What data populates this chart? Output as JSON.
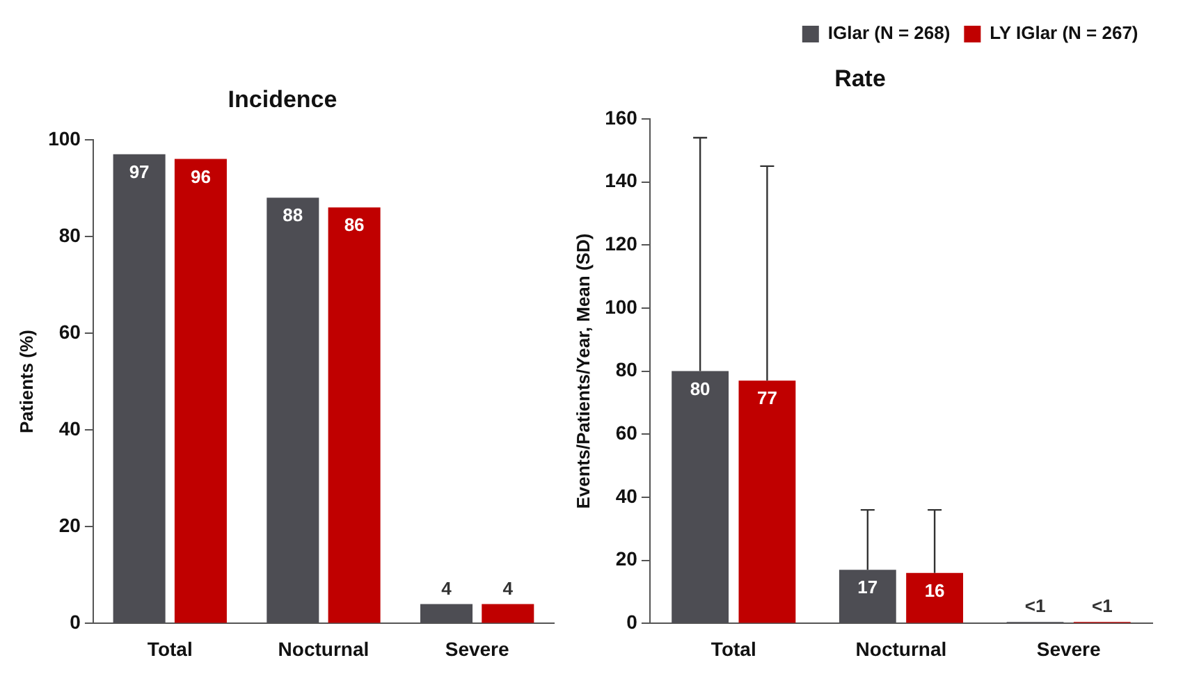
{
  "chart_data": [
    {
      "type": "bar",
      "title": "Incidence",
      "ylabel": "Patients (%)",
      "categories": [
        "Total",
        "Nocturnal",
        "Severe"
      ],
      "ylim": [
        0,
        100
      ],
      "yticks": [
        0,
        20,
        40,
        60,
        80,
        100
      ],
      "grid": false,
      "legend": false,
      "data_labels": true,
      "series": [
        {
          "color": "#4d4d53",
          "values": [
            97,
            88,
            4
          ]
        },
        {
          "color": "#c00000",
          "values": [
            96,
            86,
            4
          ]
        }
      ]
    },
    {
      "type": "bar",
      "title": "Rate",
      "ylabel": "Events/Patients/Year, Mean (SD)",
      "categories": [
        "Total",
        "Nocturnal",
        "Severe"
      ],
      "ylim": [
        0,
        160
      ],
      "yticks": [
        0,
        20,
        40,
        60,
        80,
        100,
        120,
        140,
        160
      ],
      "grid": false,
      "legend": "top right",
      "series": [
        {
          "name": "IGlar (N = 268)",
          "color": "#4d4d53",
          "values": [
            80,
            17,
            0.5
          ],
          "value_labels": [
            "80",
            "17",
            "<1"
          ],
          "errors": [
            [
              80,
              154
            ],
            [
              17,
              36
            ],
            null
          ]
        },
        {
          "name": "LY IGlar (N = 267)",
          "color": "#c00000",
          "values": [
            77,
            16,
            0.5
          ],
          "value_labels": [
            "77",
            "16",
            "<1"
          ],
          "errors": [
            [
              77,
              145
            ],
            [
              16,
              36
            ],
            null
          ]
        }
      ]
    }
  ]
}
